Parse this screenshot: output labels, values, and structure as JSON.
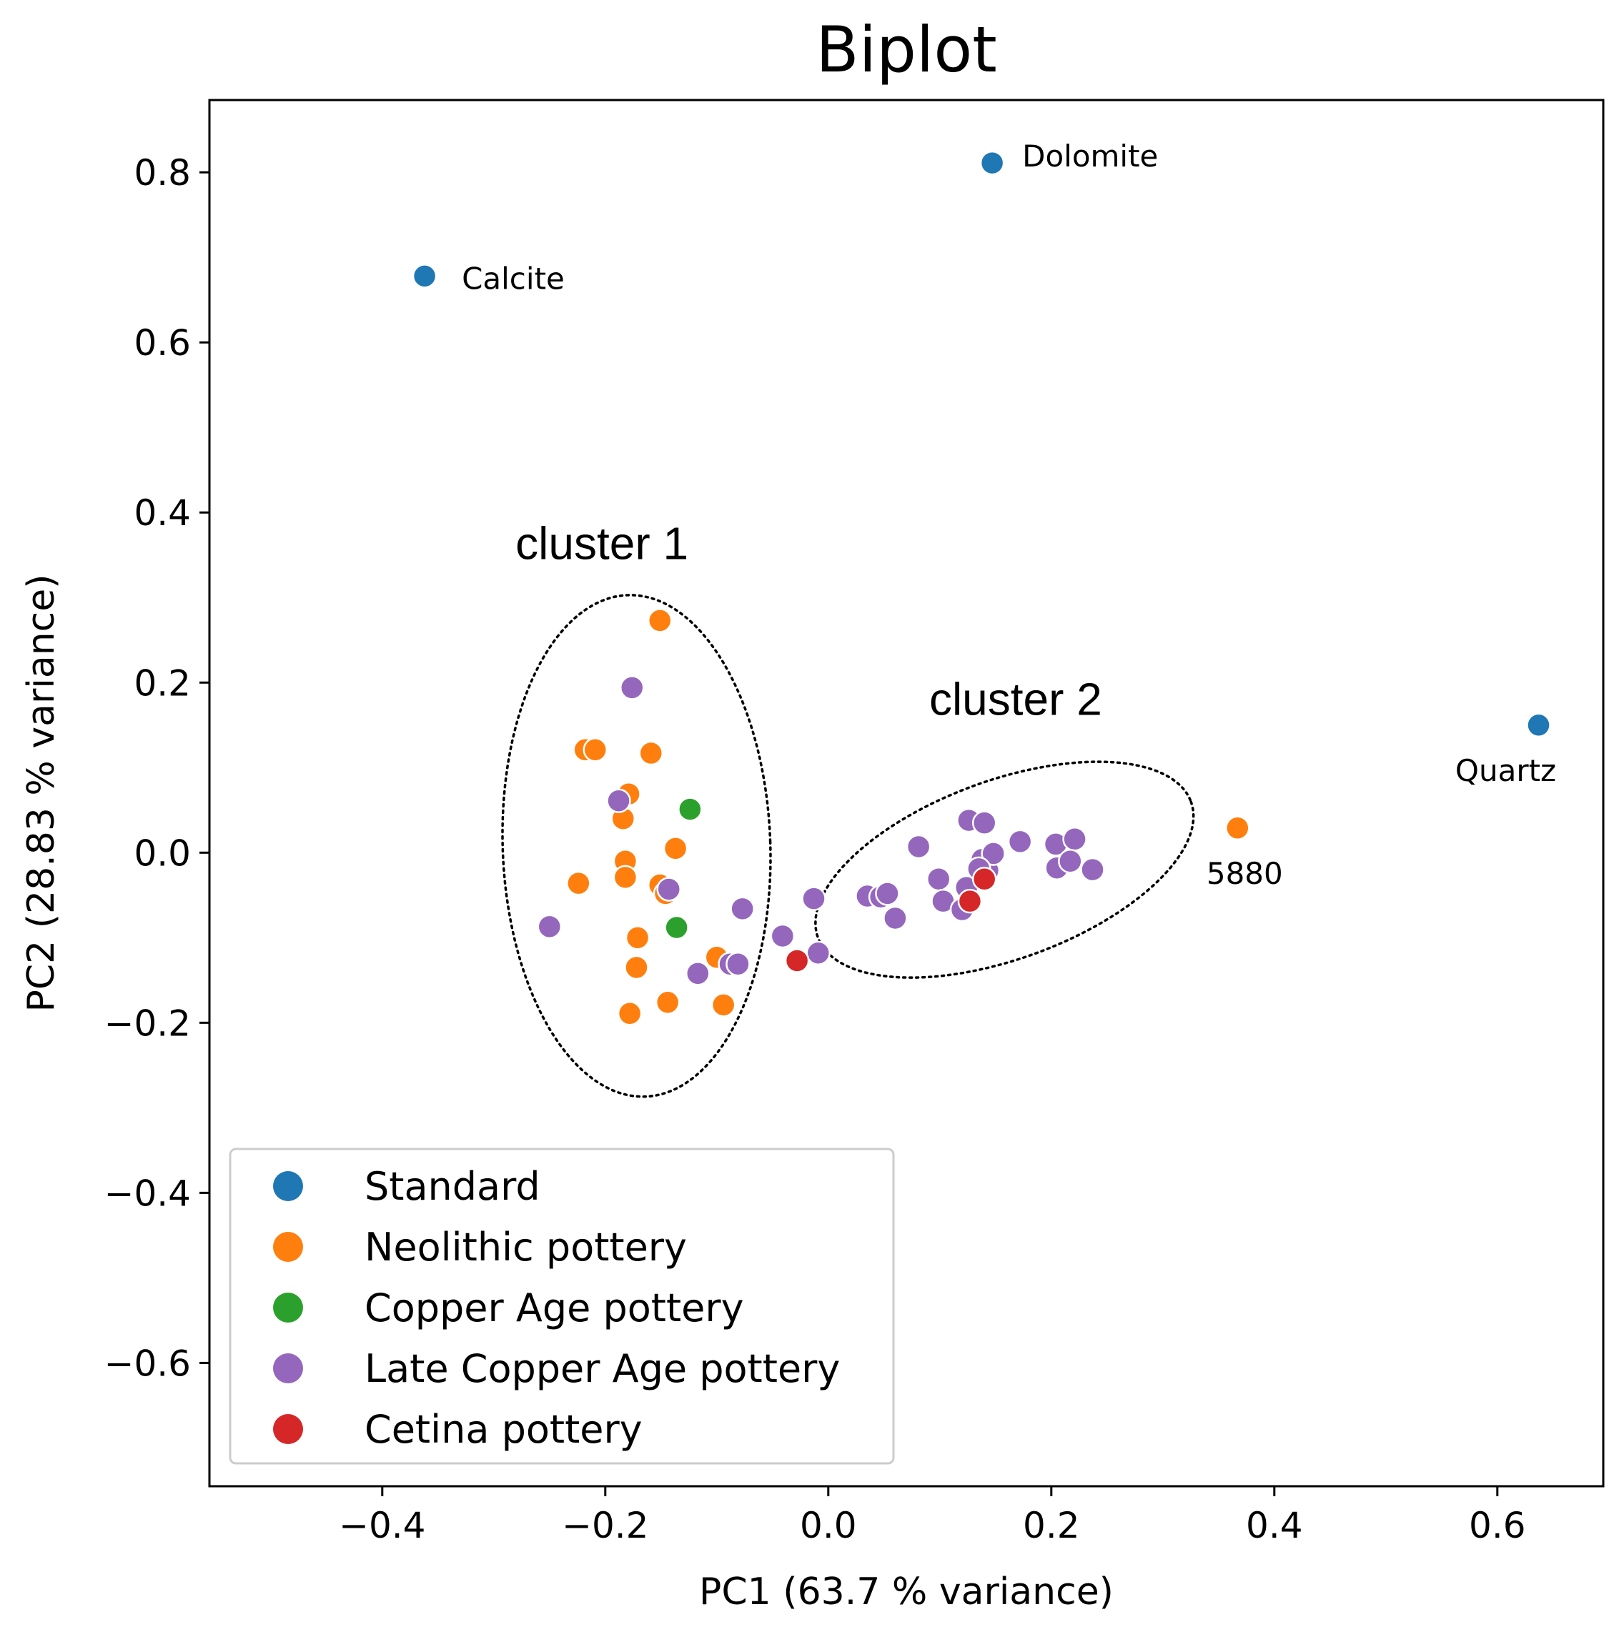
{
  "chart_data": {
    "type": "scatter",
    "title": "Biplot",
    "xlabel": "PC1 (63.7 % variance)",
    "ylabel": "PC2 (28.83 % variance)",
    "xlim": [
      -0.555,
      0.695
    ],
    "ylim": [
      -0.745,
      0.885
    ],
    "xticks": [
      -0.4,
      -0.2,
      0.0,
      0.2,
      0.4,
      0.6
    ],
    "xtick_labels": [
      "−0.4",
      "−0.2",
      "0.0",
      "0.2",
      "0.4",
      "0.6"
    ],
    "yticks": [
      0.8,
      0.6,
      0.4,
      0.2,
      0.0,
      -0.2,
      -0.4,
      -0.6
    ],
    "ytick_labels": [
      "0.8",
      "0.6",
      "0.4",
      "0.2",
      "0.0",
      "−0.2",
      "−0.4",
      "−0.6"
    ],
    "grid": false,
    "legend_position": "lower-left",
    "series": [
      {
        "name": "Standard",
        "color": "#1f77b4",
        "points": [
          {
            "x": -0.362,
            "y": 0.678,
            "label": "Calcite"
          },
          {
            "x": 0.147,
            "y": 0.811,
            "label": "Dolomite"
          },
          {
            "x": 0.637,
            "y": 0.15,
            "label": "Quartz"
          }
        ]
      },
      {
        "name": "Neolithic pottery",
        "color": "#ff7f0e",
        "points": [
          {
            "x": -0.151,
            "y": 0.273
          },
          {
            "x": -0.218,
            "y": 0.121
          },
          {
            "x": -0.209,
            "y": 0.121
          },
          {
            "x": -0.159,
            "y": 0.117
          },
          {
            "x": -0.179,
            "y": 0.069
          },
          {
            "x": -0.184,
            "y": 0.04
          },
          {
            "x": -0.137,
            "y": 0.005
          },
          {
            "x": -0.182,
            "y": -0.01
          },
          {
            "x": -0.182,
            "y": -0.029
          },
          {
            "x": -0.224,
            "y": -0.036
          },
          {
            "x": -0.151,
            "y": -0.038
          },
          {
            "x": -0.146,
            "y": -0.048
          },
          {
            "x": -0.171,
            "y": -0.1
          },
          {
            "x": -0.172,
            "y": -0.135
          },
          {
            "x": -0.1,
            "y": -0.123
          },
          {
            "x": -0.144,
            "y": -0.176
          },
          {
            "x": -0.094,
            "y": -0.179
          },
          {
            "x": -0.178,
            "y": -0.189
          },
          {
            "x": 0.367,
            "y": 0.029,
            "label": "5880"
          }
        ]
      },
      {
        "name": "Copper Age pottery",
        "color": "#2ca02c",
        "points": [
          {
            "x": -0.124,
            "y": 0.051
          },
          {
            "x": -0.136,
            "y": -0.088
          }
        ]
      },
      {
        "name": "Late Copper Age pottery",
        "color": "#9467bd",
        "points": [
          {
            "x": -0.176,
            "y": 0.194
          },
          {
            "x": -0.188,
            "y": 0.061
          },
          {
            "x": -0.143,
            "y": -0.043
          },
          {
            "x": -0.25,
            "y": -0.087
          },
          {
            "x": -0.077,
            "y": -0.066
          },
          {
            "x": -0.117,
            "y": -0.142
          },
          {
            "x": -0.088,
            "y": -0.131
          },
          {
            "x": -0.081,
            "y": -0.131
          },
          {
            "x": -0.041,
            "y": -0.098
          },
          {
            "x": -0.013,
            "y": -0.054
          },
          {
            "x": -0.009,
            "y": -0.118
          },
          {
            "x": 0.035,
            "y": -0.051
          },
          {
            "x": 0.047,
            "y": -0.052
          },
          {
            "x": 0.053,
            "y": -0.048
          },
          {
            "x": 0.06,
            "y": -0.077
          },
          {
            "x": 0.081,
            "y": 0.007
          },
          {
            "x": 0.099,
            "y": -0.031
          },
          {
            "x": 0.103,
            "y": -0.057
          },
          {
            "x": 0.12,
            "y": -0.067
          },
          {
            "x": 0.124,
            "y": -0.041
          },
          {
            "x": 0.126,
            "y": 0.038
          },
          {
            "x": 0.14,
            "y": 0.035
          },
          {
            "x": 0.138,
            "y": -0.008
          },
          {
            "x": 0.143,
            "y": -0.021
          },
          {
            "x": 0.148,
            "y": -0.001
          },
          {
            "x": 0.135,
            "y": -0.019
          },
          {
            "x": 0.172,
            "y": 0.013
          },
          {
            "x": 0.204,
            "y": 0.01
          },
          {
            "x": 0.221,
            "y": 0.016
          },
          {
            "x": 0.205,
            "y": -0.018
          },
          {
            "x": 0.217,
            "y": -0.01
          },
          {
            "x": 0.237,
            "y": -0.02
          }
        ]
      },
      {
        "name": "Cetina pottery",
        "color": "#d62728",
        "points": [
          {
            "x": -0.028,
            "y": -0.127
          },
          {
            "x": 0.127,
            "y": -0.057
          },
          {
            "x": 0.14,
            "y": -0.031
          }
        ]
      }
    ],
    "annotations": [
      {
        "text": "cluster 1",
        "x": -0.203,
        "y": 0.345,
        "shape": "dashed-ellipse",
        "center": [
          -0.172,
          0.008
        ],
        "radii": [
          0.12,
          0.295
        ],
        "rotation": -2
      },
      {
        "text": "cluster 2",
        "x": 0.168,
        "y": 0.162,
        "shape": "dashed-ellipse",
        "center": [
          0.158,
          -0.02
        ],
        "radii": [
          0.178,
          0.105
        ],
        "rotation": -20
      }
    ]
  }
}
